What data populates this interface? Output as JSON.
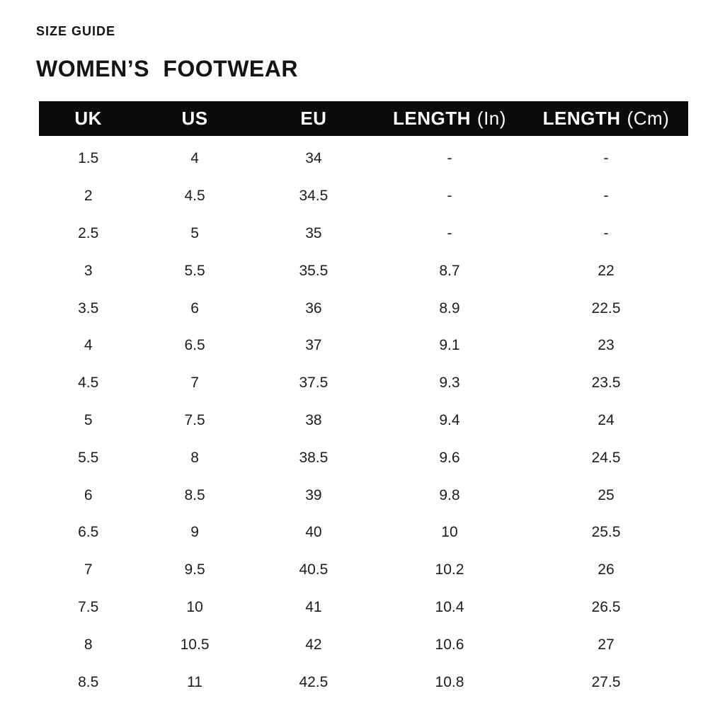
{
  "page": {
    "eyebrow": "SIZE GUIDE",
    "title": "WOMEN’S FOOTWEAR"
  },
  "colors": {
    "background": "#ffffff",
    "header_bg": "#0b0b0b",
    "header_text": "#ffffff",
    "body_text": "#1d1d1d"
  },
  "chart_data": {
    "type": "table",
    "title": "WOMEN’S FOOTWEAR",
    "subtitle": "SIZE GUIDE",
    "columns": [
      "UK",
      "US",
      "EU",
      "LENGTH (In)",
      "LENGTH (Cm)"
    ],
    "header": [
      {
        "label": "UK",
        "unit": ""
      },
      {
        "label": "US",
        "unit": ""
      },
      {
        "label": "EU",
        "unit": ""
      },
      {
        "label": "LENGTH",
        "unit": "(In)"
      },
      {
        "label": "LENGTH",
        "unit": "(Cm)"
      }
    ],
    "rows": [
      [
        "1.5",
        "4",
        "34",
        "-",
        "-"
      ],
      [
        "2",
        "4.5",
        "34.5",
        "-",
        "-"
      ],
      [
        "2.5",
        "5",
        "35",
        "-",
        "-"
      ],
      [
        "3",
        "5.5",
        "35.5",
        "8.7",
        "22"
      ],
      [
        "3.5",
        "6",
        "36",
        "8.9",
        "22.5"
      ],
      [
        "4",
        "6.5",
        "37",
        "9.1",
        "23"
      ],
      [
        "4.5",
        "7",
        "37.5",
        "9.3",
        "23.5"
      ],
      [
        "5",
        "7.5",
        "38",
        "9.4",
        "24"
      ],
      [
        "5.5",
        "8",
        "38.5",
        "9.6",
        "24.5"
      ],
      [
        "6",
        "8.5",
        "39",
        "9.8",
        "25"
      ],
      [
        "6.5",
        "9",
        "40",
        "10",
        "25.5"
      ],
      [
        "7",
        "9.5",
        "40.5",
        "10.2",
        "26"
      ],
      [
        "7.5",
        "10",
        "41",
        "10.4",
        "26.5"
      ],
      [
        "8",
        "10.5",
        "42",
        "10.6",
        "27"
      ],
      [
        "8.5",
        "11",
        "42.5",
        "10.8",
        "27.5"
      ]
    ]
  }
}
